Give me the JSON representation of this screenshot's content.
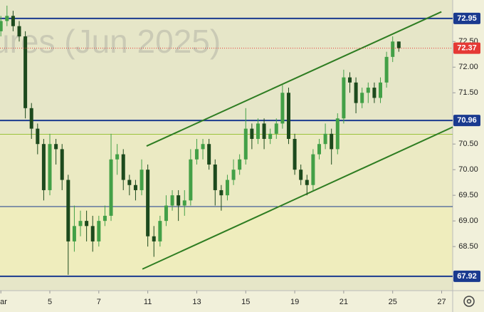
{
  "chart_data": {
    "type": "candlestick",
    "watermark": "ures (Jun 2025)",
    "x": [
      0,
      0.25,
      0.5,
      0.75,
      1,
      1.25,
      1.5,
      1.75,
      2,
      2.25,
      2.5,
      2.75,
      3,
      3.25,
      3.5,
      3.75,
      4,
      4.25,
      4.5,
      4.75,
      5,
      5.25,
      5.5,
      5.75,
      6,
      6.25,
      6.5,
      6.75,
      7,
      7.25,
      7.5,
      7.75,
      8,
      8.25,
      8.5,
      8.75,
      9,
      9.25,
      9.5,
      9.75,
      10,
      10.25,
      10.5,
      10.75,
      11,
      11.25,
      11.5,
      11.75,
      12,
      12.25,
      12.5,
      12.75,
      13,
      13.25,
      13.5,
      13.75,
      14,
      14.25,
      14.5,
      14.75,
      15,
      15.25,
      15.5,
      15.75,
      16,
      16.25
    ],
    "open": [
      72.7,
      72.9,
      73.0,
      72.8,
      72.6,
      71.2,
      70.8,
      70.5,
      69.6,
      70.5,
      70.4,
      69.8,
      68.6,
      68.9,
      69.0,
      68.9,
      68.6,
      69.0,
      69.1,
      70.2,
      70.3,
      69.8,
      69.7,
      69.6,
      70.0,
      68.7,
      68.6,
      69.0,
      69.3,
      69.5,
      69.3,
      69.4,
      70.2,
      70.4,
      70.5,
      70.1,
      69.6,
      69.5,
      69.8,
      70.0,
      70.2,
      70.8,
      70.6,
      70.9,
      70.6,
      70.7,
      70.9,
      71.5,
      70.6,
      70.0,
      69.8,
      69.7,
      70.3,
      70.5,
      70.7,
      70.4,
      71.0,
      71.8,
      71.7,
      71.3,
      71.5,
      71.6,
      71.4,
      71.7,
      72.2,
      72.5
    ],
    "high": [
      73.0,
      73.2,
      73.1,
      72.9,
      72.7,
      71.3,
      70.9,
      70.6,
      70.7,
      70.6,
      70.5,
      69.9,
      69.3,
      69.2,
      69.2,
      69.1,
      69.1,
      69.3,
      70.7,
      70.5,
      70.4,
      69.9,
      69.8,
      70.2,
      70.1,
      68.9,
      69.1,
      69.5,
      69.6,
      69.6,
      69.6,
      70.4,
      70.6,
      70.6,
      70.6,
      70.2,
      69.7,
      69.9,
      70.2,
      70.3,
      71.2,
      70.9,
      71.0,
      71.0,
      70.8,
      71.0,
      71.65,
      71.6,
      70.7,
      70.1,
      69.9,
      70.4,
      70.6,
      70.9,
      70.8,
      71.1,
      71.95,
      71.9,
      71.8,
      71.6,
      71.7,
      71.7,
      71.8,
      72.3,
      72.6,
      72.5
    ],
    "low": [
      72.6,
      72.8,
      72.7,
      72.5,
      71.0,
      70.6,
      70.3,
      69.4,
      69.5,
      70.1,
      69.6,
      67.95,
      68.4,
      68.7,
      68.6,
      68.4,
      68.5,
      68.9,
      69.0,
      69.9,
      69.6,
      69.5,
      69.4,
      69.5,
      68.5,
      68.3,
      68.5,
      68.9,
      69.2,
      69.0,
      69.1,
      69.3,
      70.1,
      70.2,
      70.0,
      69.3,
      69.2,
      69.4,
      69.7,
      69.9,
      70.1,
      70.4,
      70.5,
      70.4,
      70.5,
      70.6,
      70.8,
      70.5,
      69.9,
      69.7,
      69.5,
      69.6,
      70.2,
      70.4,
      70.1,
      70.3,
      70.9,
      71.5,
      71.1,
      71.2,
      71.3,
      71.3,
      71.3,
      71.6,
      72.1,
      72.3
    ],
    "close": [
      72.9,
      73.0,
      72.8,
      72.6,
      71.2,
      70.8,
      70.5,
      69.6,
      70.5,
      70.4,
      69.8,
      68.6,
      68.9,
      69.0,
      68.9,
      68.6,
      69.0,
      69.1,
      70.2,
      70.3,
      69.8,
      69.7,
      69.6,
      70.0,
      68.7,
      68.6,
      69.0,
      69.3,
      69.5,
      69.3,
      69.4,
      70.2,
      70.4,
      70.5,
      70.1,
      69.6,
      69.5,
      69.8,
      70.0,
      70.2,
      70.8,
      70.6,
      70.9,
      70.6,
      70.7,
      70.9,
      71.5,
      70.6,
      70.0,
      69.8,
      69.7,
      70.3,
      70.5,
      70.7,
      70.4,
      71.0,
      71.8,
      71.7,
      71.3,
      71.5,
      71.6,
      71.4,
      71.7,
      72.2,
      72.5,
      72.37
    ],
    "up_color": "#43a047",
    "down_color": "#1d4a1d",
    "last_price_color": "#e53935",
    "xlim": [
      -0.035,
      18.45
    ],
    "ylim": [
      67.64,
      73.31
    ],
    "xticks": [
      {
        "value": 0,
        "label": "ar"
      },
      {
        "value": 2,
        "label": "5"
      },
      {
        "value": 4,
        "label": "7"
      },
      {
        "value": 6,
        "label": "11"
      },
      {
        "value": 8,
        "label": "13"
      },
      {
        "value": 10,
        "label": "15"
      },
      {
        "value": 12,
        "label": "19"
      },
      {
        "value": 14,
        "label": "21"
      },
      {
        "value": 16,
        "label": "25"
      },
      {
        "value": 18,
        "label": "27"
      }
    ],
    "yticks": [
      {
        "value": 72.5,
        "label": "72.50"
      },
      {
        "value": 72,
        "label": "72.00"
      },
      {
        "value": 71.5,
        "label": "71.50"
      },
      {
        "value": 70.5,
        "label": "70.50"
      },
      {
        "value": 70,
        "label": "70.00"
      },
      {
        "value": 69.5,
        "label": "69.50"
      },
      {
        "value": 69,
        "label": "69.00"
      },
      {
        "value": 68.5,
        "label": "68.50"
      }
    ],
    "levels": [
      {
        "value": 72.95,
        "color": "#1a3a8f",
        "labeled": true
      },
      {
        "value": 70.96,
        "color": "#1a3a8f",
        "labeled": true
      },
      {
        "value": 70.69,
        "color": "#9bc23c",
        "labeled": false
      },
      {
        "value": 69.28,
        "color": "#1a3a8f",
        "labeled": false
      },
      {
        "value": 67.92,
        "color": "#1a3a8f",
        "labeled": true
      }
    ],
    "trendlines": [
      {
        "x": [
          5.95,
          17.99
        ],
        "y": [
          70.46,
          73.08
        ],
        "color": "#2e7d22"
      },
      {
        "x": [
          5.78,
          18.45
        ],
        "y": [
          68.06,
          70.83
        ],
        "color": "#2e7d22"
      }
    ]
  }
}
